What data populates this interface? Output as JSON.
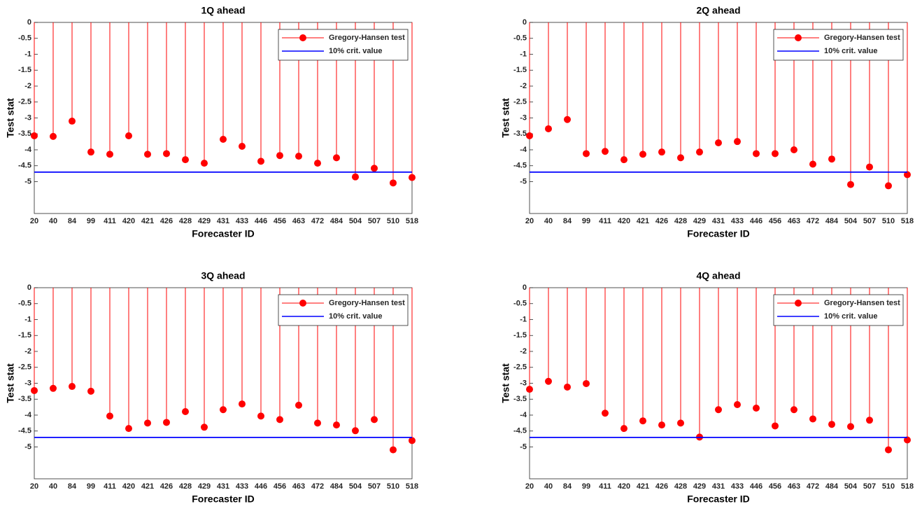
{
  "chart_data": [
    {
      "type": "stem",
      "title": "1Q ahead",
      "xlabel": "Forecaster ID",
      "ylabel": "Test stat",
      "categories": [
        "20",
        "40",
        "84",
        "99",
        "411",
        "420",
        "421",
        "426",
        "428",
        "429",
        "431",
        "433",
        "446",
        "456",
        "463",
        "472",
        "484",
        "504",
        "507",
        "510",
        "518"
      ],
      "series": [
        {
          "name": "Gregory-Hansen test",
          "color": "#ff0000",
          "values": [
            -3.56,
            -3.58,
            -3.1,
            -4.07,
            -4.14,
            -3.56,
            -4.14,
            -4.12,
            -4.31,
            -4.42,
            -3.67,
            -3.89,
            -4.36,
            -4.18,
            -4.2,
            -4.42,
            -4.25,
            -4.85,
            -4.58,
            -5.04,
            -4.87
          ]
        }
      ],
      "hline": {
        "name": "10% crit. value",
        "color": "#0000ff",
        "value": -4.7
      },
      "ylim": [
        -6,
        0
      ],
      "yticks": [
        0,
        -0.5,
        -1,
        -1.5,
        -2,
        -2.5,
        -3,
        -3.5,
        -4,
        -4.5,
        -5
      ],
      "legend": "upper right"
    },
    {
      "type": "stem",
      "title": "2Q ahead",
      "xlabel": "Forecaster ID",
      "ylabel": "Test stat",
      "categories": [
        "20",
        "40",
        "84",
        "99",
        "411",
        "420",
        "421",
        "426",
        "428",
        "429",
        "431",
        "433",
        "446",
        "456",
        "463",
        "472",
        "484",
        "504",
        "507",
        "510",
        "518"
      ],
      "series": [
        {
          "name": "Gregory-Hansen test",
          "color": "#ff0000",
          "values": [
            -3.56,
            -3.34,
            -3.05,
            -4.12,
            -4.05,
            -4.31,
            -4.14,
            -4.07,
            -4.25,
            -4.07,
            -3.78,
            -3.74,
            -4.12,
            -4.12,
            -4.0,
            -4.45,
            -4.29,
            -5.09,
            -4.54,
            -5.13,
            -4.78
          ]
        }
      ],
      "hline": {
        "name": "10% crit. value",
        "color": "#0000ff",
        "value": -4.7
      },
      "ylim": [
        -6,
        0
      ],
      "yticks": [
        0,
        -0.5,
        -1,
        -1.5,
        -2,
        -2.5,
        -3,
        -3.5,
        -4,
        -4.5,
        -5
      ],
      "legend": "upper right"
    },
    {
      "type": "stem",
      "title": "3Q ahead",
      "xlabel": "Forecaster ID",
      "ylabel": "Test stat",
      "categories": [
        "20",
        "40",
        "84",
        "99",
        "411",
        "420",
        "421",
        "426",
        "428",
        "429",
        "431",
        "433",
        "446",
        "456",
        "463",
        "472",
        "484",
        "504",
        "507",
        "510",
        "518"
      ],
      "series": [
        {
          "name": "Gregory-Hansen test",
          "color": "#ff0000",
          "values": [
            -3.23,
            -3.16,
            -3.1,
            -3.25,
            -4.03,
            -4.42,
            -4.25,
            -4.23,
            -3.89,
            -4.38,
            -3.83,
            -3.65,
            -4.03,
            -4.14,
            -3.69,
            -4.25,
            -4.31,
            -4.49,
            -4.14,
            -5.09,
            -4.8
          ]
        }
      ],
      "hline": {
        "name": "10% crit. value",
        "color": "#0000ff",
        "value": -4.7
      },
      "ylim": [
        -6,
        0
      ],
      "yticks": [
        0,
        -0.5,
        -1,
        -1.5,
        -2,
        -2.5,
        -3,
        -3.5,
        -4,
        -4.5,
        -5
      ],
      "legend": "upper right"
    },
    {
      "type": "stem",
      "title": "4Q ahead",
      "xlabel": "Forecaster ID",
      "ylabel": "Test stat",
      "categories": [
        "20",
        "40",
        "84",
        "99",
        "411",
        "420",
        "421",
        "426",
        "428",
        "429",
        "431",
        "433",
        "446",
        "456",
        "463",
        "472",
        "484",
        "504",
        "507",
        "510",
        "518"
      ],
      "series": [
        {
          "name": "Gregory-Hansen test",
          "color": "#ff0000",
          "values": [
            -3.19,
            -2.94,
            -3.12,
            -3.01,
            -3.94,
            -4.42,
            -4.18,
            -4.31,
            -4.25,
            -4.69,
            -3.83,
            -3.67,
            -3.78,
            -4.34,
            -3.83,
            -4.12,
            -4.29,
            -4.36,
            -4.16,
            -5.09,
            -4.78
          ]
        }
      ],
      "hline": {
        "name": "10% crit. value",
        "color": "#0000ff",
        "value": -4.7
      },
      "ylim": [
        -6,
        0
      ],
      "yticks": [
        0,
        -0.5,
        -1,
        -1.5,
        -2,
        -2.5,
        -3,
        -3.5,
        -4,
        -4.5,
        -5
      ],
      "legend": "upper right"
    }
  ]
}
